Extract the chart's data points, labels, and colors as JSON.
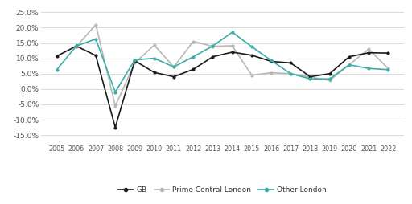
{
  "years": [
    2005,
    2006,
    2007,
    2008,
    2009,
    2010,
    2011,
    2012,
    2013,
    2014,
    2015,
    2016,
    2017,
    2018,
    2019,
    2020,
    2021,
    2022
  ],
  "gb": [
    0.107,
    0.14,
    0.109,
    -0.125,
    0.092,
    0.054,
    0.04,
    0.064,
    0.105,
    0.12,
    0.11,
    0.09,
    0.085,
    0.04,
    0.05,
    0.105,
    0.118,
    0.117
  ],
  "prime_central_london": [
    null,
    0.138,
    0.21,
    -0.055,
    0.085,
    0.143,
    0.072,
    0.155,
    0.139,
    0.141,
    0.045,
    0.053,
    0.05,
    null,
    0.028,
    null,
    0.13,
    0.067
  ],
  "other_london": [
    0.063,
    0.14,
    0.163,
    -0.01,
    0.095,
    0.1,
    0.072,
    0.105,
    0.14,
    0.185,
    0.138,
    0.093,
    0.05,
    0.033,
    0.033,
    0.079,
    0.067,
    0.063
  ],
  "gb_color": "#1a1a1a",
  "prime_color": "#b8b8b8",
  "other_color": "#3aada8",
  "bg_color": "#ffffff",
  "grid_color": "#cccccc",
  "ylim": [
    -0.175,
    0.27
  ],
  "yticks": [
    -0.15,
    -0.1,
    -0.05,
    0.0,
    0.05,
    0.1,
    0.15,
    0.2,
    0.25
  ],
  "legend_labels": [
    "GB",
    "Prime Central London",
    "Other London"
  ]
}
